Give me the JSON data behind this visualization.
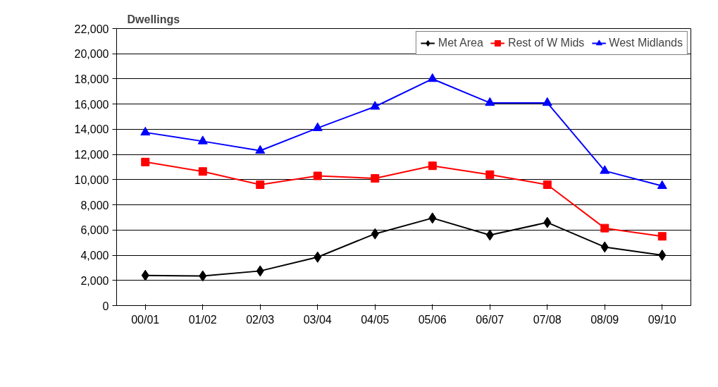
{
  "chart_data": {
    "type": "line",
    "ylabel": "Dwellings",
    "categories": [
      "00/01",
      "01/02",
      "02/03",
      "03/04",
      "04/05",
      "05/06",
      "06/07",
      "07/08",
      "08/09",
      "09/10"
    ],
    "series": [
      {
        "name": "Met Area",
        "color": "#000000",
        "marker": "diamond",
        "values": [
          2400,
          2350,
          2750,
          3850,
          5700,
          6950,
          5600,
          6600,
          4650,
          4000
        ]
      },
      {
        "name": "Rest of W Mids",
        "color": "#ff0000",
        "marker": "square",
        "values": [
          11400,
          10650,
          9600,
          10300,
          10100,
          11100,
          10400,
          9600,
          6150,
          5500
        ]
      },
      {
        "name": "West Midlands",
        "color": "#0000ff",
        "marker": "triangle",
        "values": [
          13750,
          13050,
          12300,
          14100,
          15800,
          18000,
          16100,
          16100,
          10700,
          9500
        ]
      }
    ],
    "ylim": [
      0,
      22000
    ],
    "yticks": [
      {
        "value": 0,
        "label": "0"
      },
      {
        "value": 2000,
        "label": "2,000"
      },
      {
        "value": 4000,
        "label": "4,000"
      },
      {
        "value": 6000,
        "label": "6,000"
      },
      {
        "value": 8000,
        "label": "8,000"
      },
      {
        "value": 10000,
        "label": "10,000"
      },
      {
        "value": 12000,
        "label": "12,000"
      },
      {
        "value": 14000,
        "label": "14,000"
      },
      {
        "value": 16000,
        "label": "16,000"
      },
      {
        "value": 18000,
        "label": "18,000"
      },
      {
        "value": 20000,
        "label": "20,000"
      },
      {
        "value": 22000,
        "label": "22,000"
      }
    ],
    "grid": "y",
    "legend": "top right",
    "line_style": "solid"
  }
}
